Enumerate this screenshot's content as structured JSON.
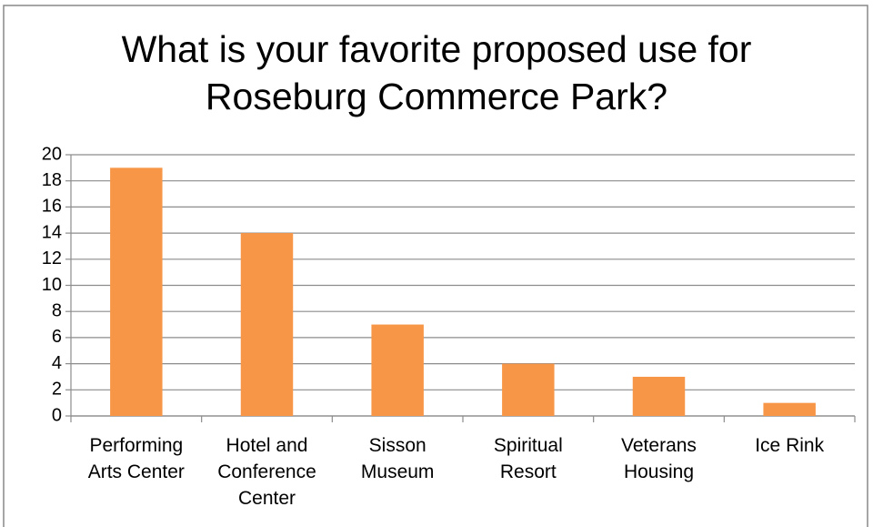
{
  "chart_data": {
    "type": "bar",
    "title": "What is your favorite proposed use for Roseburg Commerce Park?",
    "categories": [
      "Performing Arts Center",
      "Hotel and Conference Center",
      "Sisson Museum",
      "Spiritual Resort",
      "Veterans Housing",
      "Ice Rink"
    ],
    "values": [
      19,
      14,
      7,
      4,
      3,
      1
    ],
    "color": "#f79646",
    "ylim": [
      0,
      20
    ],
    "yticks": [
      0,
      2,
      4,
      6,
      8,
      10,
      12,
      14,
      16,
      18,
      20
    ],
    "grid": true
  }
}
